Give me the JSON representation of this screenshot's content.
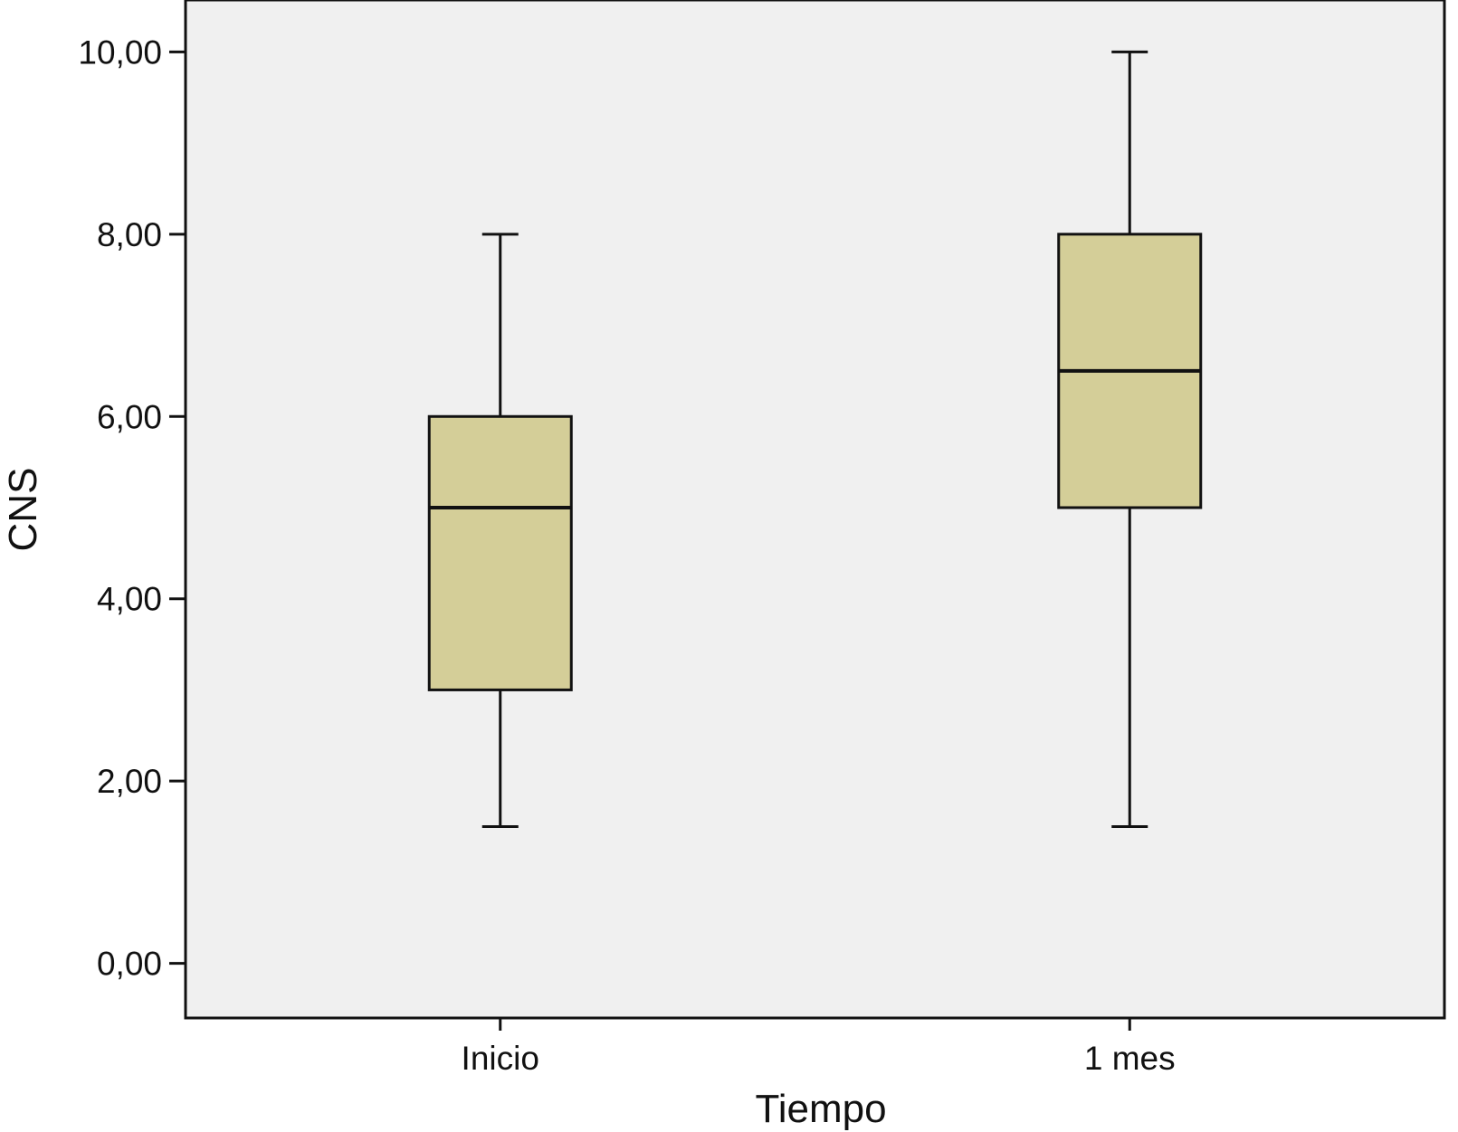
{
  "chart_data": {
    "type": "boxplot",
    "xlabel": "Tiempo",
    "ylabel": "CNS",
    "ylim": [
      -0.6,
      10.57
    ],
    "yticks": [
      0,
      2,
      4,
      6,
      8,
      10
    ],
    "ytick_labels": [
      "0,00",
      "2,00",
      "4,00",
      "6,00",
      "8,00",
      "10,00"
    ],
    "categories": [
      "Inicio",
      "1 mes"
    ],
    "boxes": [
      {
        "category": "Inicio",
        "whisker_low": 1.5,
        "q1": 3.0,
        "median": 5.0,
        "q3": 6.0,
        "whisker_high": 8.0
      },
      {
        "category": "1 mes",
        "whisker_low": 1.5,
        "q1": 5.0,
        "median": 6.5,
        "q3": 8.0,
        "whisker_high": 10.0
      }
    ],
    "grid": false,
    "colors": {
      "box_fill": "#d4ce98",
      "plot_background": "#f0f0f0",
      "stroke": "#111111"
    }
  }
}
